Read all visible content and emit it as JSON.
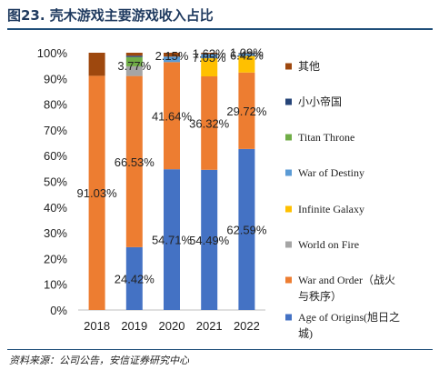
{
  "figure_title": "图23. 壳木游戏主要游戏收入占比",
  "source_note": "资料来源：公司公告，安信证券研究中心",
  "chart_data": {
    "type": "bar",
    "stacked": true,
    "categories": [
      "2018",
      "2019",
      "2020",
      "2021",
      "2022"
    ],
    "ylim": [
      0,
      100
    ],
    "yticks": [
      "0%",
      "10%",
      "20%",
      "30%",
      "40%",
      "50%",
      "60%",
      "70%",
      "80%",
      "90%",
      "100%"
    ],
    "series": [
      {
        "name": "Age of Origins(旭日之城)",
        "color": "#4472c4",
        "values": [
          0,
          24.42,
          54.71,
          54.49,
          62.59
        ],
        "labels": [
          "",
          "24.42%",
          "54.71%",
          "54.49%",
          "62.59%"
        ]
      },
      {
        "name": "War and Order（战火与秩序）",
        "color": "#ed7d31",
        "values": [
          91.03,
          66.53,
          41.64,
          36.32,
          29.72
        ],
        "labels": [
          "91.03%",
          "66.53%",
          "41.64%",
          "36.32%",
          "29.72%"
        ]
      },
      {
        "name": "World on Fire",
        "color": "#a5a5a5",
        "values": [
          0,
          3.77,
          0,
          0,
          0
        ],
        "labels": [
          "",
          "3.77%",
          "",
          "",
          ""
        ]
      },
      {
        "name": "Infinite Galaxy",
        "color": "#ffc000",
        "values": [
          0,
          0,
          0,
          7.05,
          6.42
        ],
        "labels": [
          "",
          "",
          "",
          "7.05%",
          "6.42%"
        ]
      },
      {
        "name": "War of Destiny",
        "color": "#5b9bd5",
        "values": [
          0,
          0,
          2.15,
          1.63,
          1.09
        ],
        "labels": [
          "",
          "",
          "2.15%",
          "1.63%",
          "1.09%"
        ]
      },
      {
        "name": "Titan Throne",
        "color": "#70ad47",
        "values": [
          0,
          3.6,
          0,
          0,
          0
        ],
        "labels": [
          "",
          "",
          "",
          "",
          ""
        ]
      },
      {
        "name": "小小帝国",
        "color": "#264478",
        "values": [
          0,
          0.5,
          0,
          0,
          0
        ],
        "labels": [
          "",
          "",
          "",
          "",
          ""
        ]
      },
      {
        "name": "其他",
        "color": "#9e480e",
        "values": [
          8.97,
          1.18,
          1.5,
          0.51,
          0.18
        ],
        "labels": [
          "",
          "",
          "",
          "",
          ""
        ]
      }
    ],
    "legend": {
      "position": "right",
      "order": [
        7,
        6,
        5,
        4,
        3,
        2,
        1,
        0
      ],
      "lines": [
        [
          "其他"
        ],
        [
          "小小帝国"
        ],
        [
          "Titan Throne"
        ],
        [
          "War of Destiny"
        ],
        [
          "Infinite Galaxy"
        ],
        [
          "World on Fire"
        ],
        [
          "War and Order（战火",
          "与秩序）"
        ],
        [
          "Age of Origins(旭日之",
          "城)"
        ]
      ]
    }
  }
}
